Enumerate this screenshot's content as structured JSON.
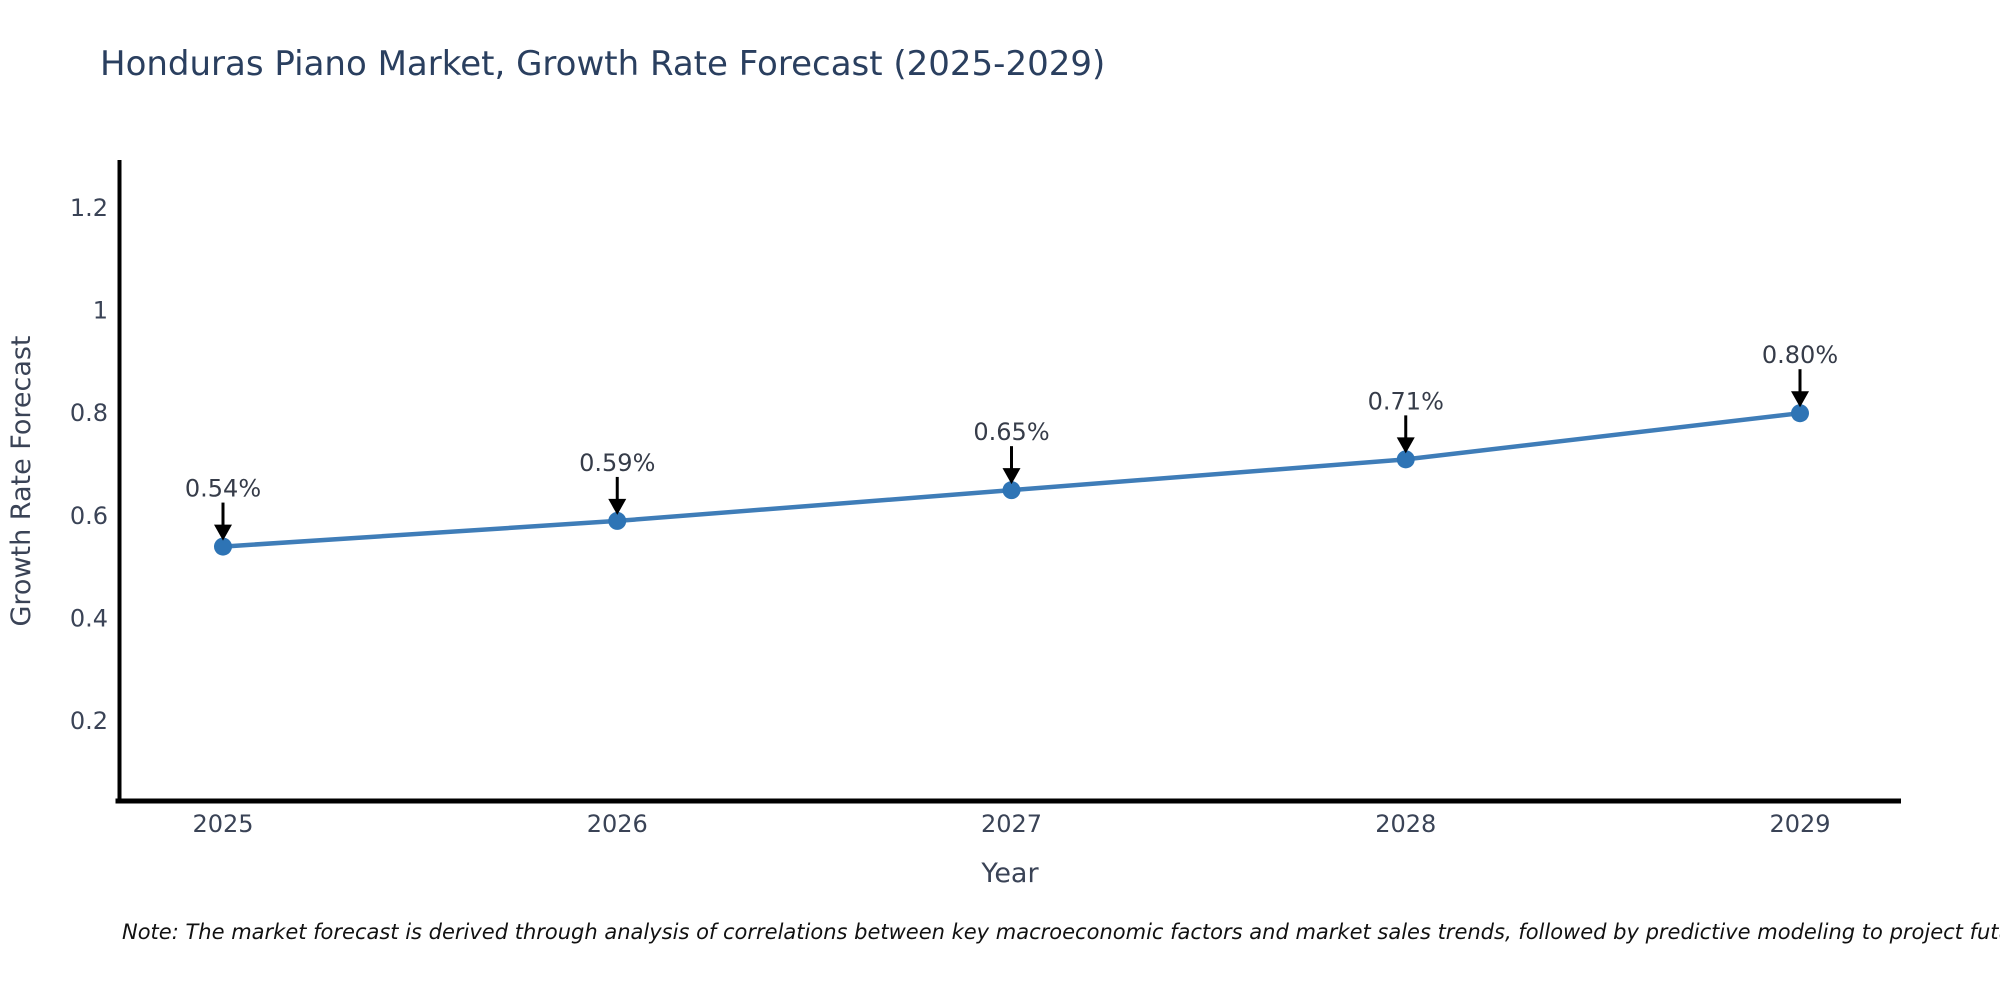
{
  "page": {
    "background": "#ffffff"
  },
  "chart_data": {
    "type": "line",
    "title": "Honduras Piano Market, Growth Rate Forecast (2025-2029)",
    "xlabel": "Year",
    "ylabel": "Growth Rate Forecast",
    "categories": [
      "2025",
      "2026",
      "2027",
      "2028",
      "2029"
    ],
    "series": [
      {
        "name": "Growth Rate Forecast",
        "values": [
          0.54,
          0.59,
          0.65,
          0.71,
          0.8
        ]
      }
    ],
    "point_labels": [
      "0.54%",
      "0.59%",
      "0.65%",
      "0.71%",
      "0.80%"
    ],
    "yticks": [
      {
        "value": 1.2,
        "label": "1.2"
      },
      {
        "value": 1.0,
        "label": "1"
      },
      {
        "value": 0.8,
        "label": "0.8"
      },
      {
        "value": 0.6,
        "label": "0.6"
      },
      {
        "value": 0.4,
        "label": "0.4"
      },
      {
        "value": 0.2,
        "label": "0.2"
      }
    ],
    "ylim": [
      0.045,
      1.295
    ],
    "grid": false,
    "legend": "none",
    "annotation_style": "label-with-down-arrow-to-point",
    "note": "Note: The market forecast is derived through analysis of correlations between key macroeconomic factors and market sales trends, followed by predictive modeling to project future sales",
    "colors": {
      "line": "#3f7db8",
      "marker": "#2e74b5",
      "axis": "#000000",
      "arrow": "#000000",
      "title_text": "#2a3f5f",
      "tick_text": "#3a4356",
      "annotation_text": "#363c49",
      "note_text": "#111111",
      "background": "#ffffff"
    }
  }
}
